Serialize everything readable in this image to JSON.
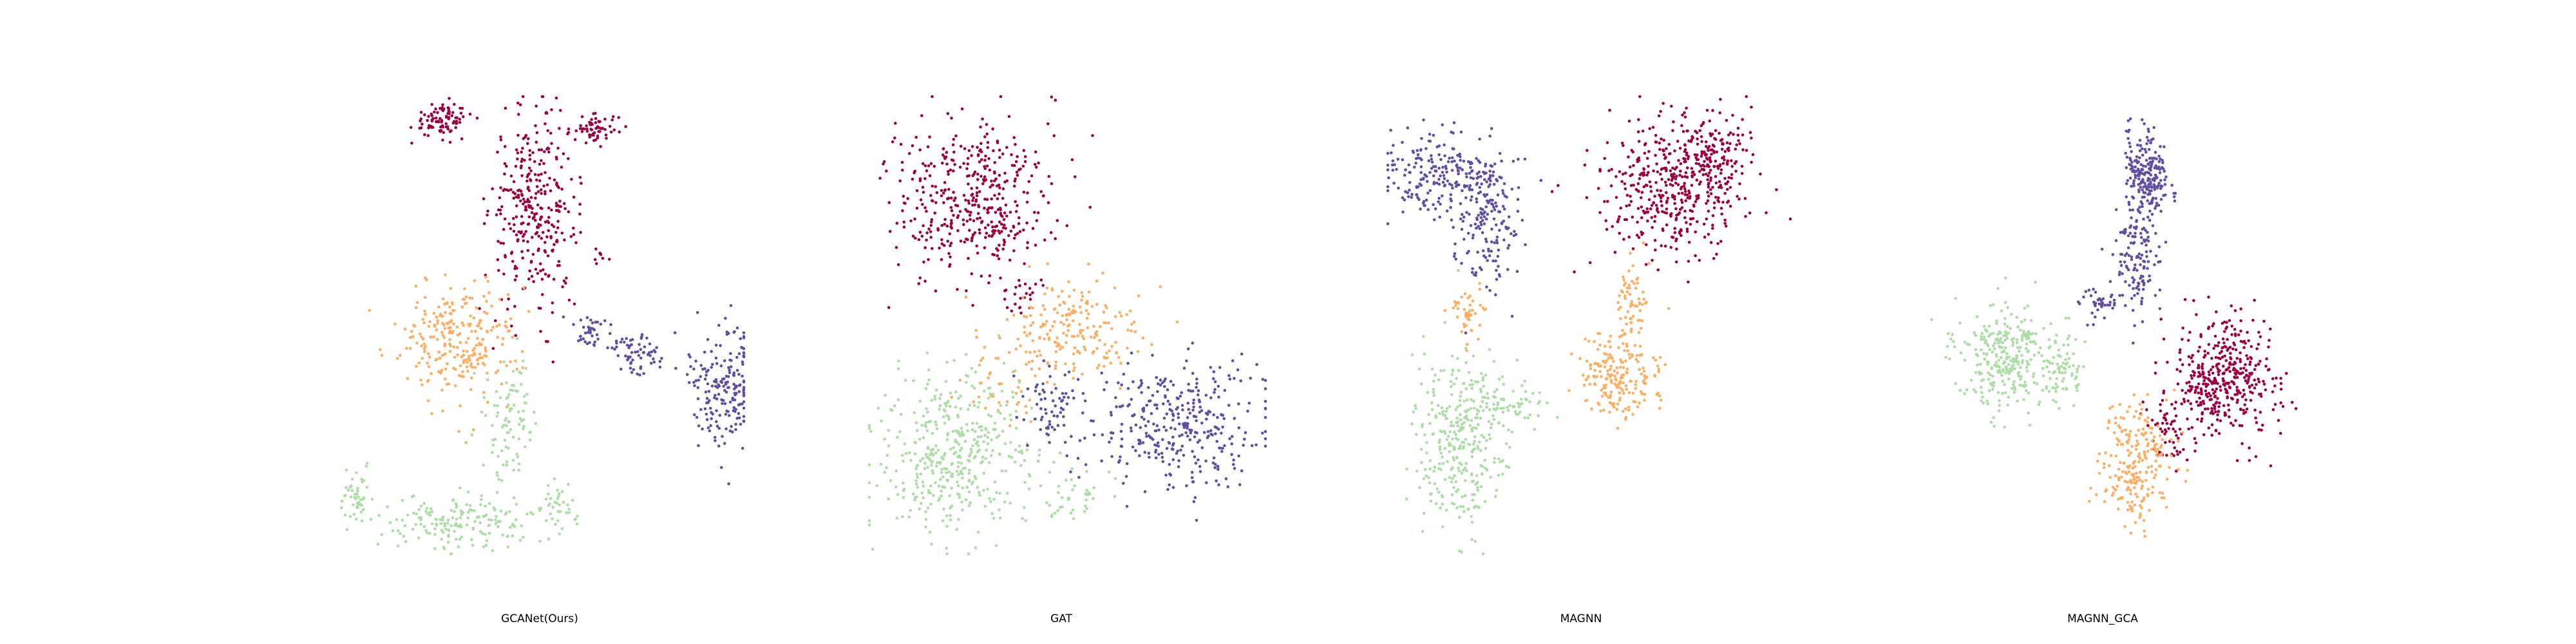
{
  "figure": {
    "panels": [
      "GCANet(Ours)",
      "GAT",
      "MAGNN",
      "MAGNN_GCA"
    ]
  },
  "chart_data": [
    {
      "type": "scatter",
      "title": "GCANet(Ours)",
      "xlabel": "",
      "ylabel": "",
      "axes_visible": false,
      "grid": false,
      "legend": "none",
      "xlim": [
        0,
        100
      ],
      "ylim": [
        0,
        100
      ],
      "series": [
        {
          "color": "#9e0142",
          "clusters": [
            {
              "center": [
                25,
                95
              ],
              "spread": [
                5,
                2.5
              ],
              "n": 90
            },
            {
              "center": [
                48,
                75
              ],
              "spread": [
                7,
                14
              ],
              "n": 320
            },
            {
              "center": [
                63,
                93
              ],
              "spread": [
                4,
                2
              ],
              "n": 60
            },
            {
              "center": [
                65,
                65
              ],
              "spread": [
                1.2,
                1.2
              ],
              "n": 8
            }
          ]
        },
        {
          "color": "#fdae61",
          "clusters": [
            {
              "center": [
                29,
                47
              ],
              "spread": [
                10,
                9
              ],
              "n": 260
            }
          ]
        },
        {
          "color": "#abdda4",
          "clusters": [
            {
              "center": [
                42,
                29
              ],
              "spread": [
                4,
                9
              ],
              "n": 90
            },
            {
              "center": [
                30,
                7
              ],
              "spread": [
                12,
                4
              ],
              "n": 170
            },
            {
              "center": [
                4,
                12
              ],
              "spread": [
                3,
                4
              ],
              "n": 45
            },
            {
              "center": [
                54,
                10
              ],
              "spread": [
                3,
                4
              ],
              "n": 40
            }
          ]
        },
        {
          "color": "#5e4fa2",
          "clusters": [
            {
              "center": [
                62,
                48
              ],
              "spread": [
                4,
                3
              ],
              "n": 40
            },
            {
              "center": [
                74,
                44
              ],
              "spread": [
                5,
                3
              ],
              "n": 60
            },
            {
              "center": [
                95,
                37
              ],
              "spread": [
                6,
                9
              ],
              "n": 190
            }
          ]
        }
      ]
    },
    {
      "type": "scatter",
      "title": "GAT",
      "xlabel": "",
      "ylabel": "",
      "axes_visible": false,
      "grid": false,
      "legend": "none",
      "xlim": [
        0,
        100
      ],
      "ylim": [
        0,
        100
      ],
      "series": [
        {
          "color": "#9e0142",
          "clusters": [
            {
              "center": [
                26,
                77
              ],
              "spread": [
                13,
                12
              ],
              "n": 420
            },
            {
              "center": [
                39,
                57
              ],
              "spread": [
                4,
                3
              ],
              "n": 25
            }
          ]
        },
        {
          "color": "#fdae61",
          "clusters": [
            {
              "center": [
                52,
                50
              ],
              "spread": [
                12,
                7
              ],
              "n": 190
            },
            {
              "center": [
                38,
                37
              ],
              "spread": [
                10,
                6
              ],
              "n": 50
            }
          ]
        },
        {
          "color": "#abdda4",
          "clusters": [
            {
              "center": [
                22,
                22
              ],
              "spread": [
                13,
                12
              ],
              "n": 420
            },
            {
              "center": [
                52,
                13
              ],
              "spread": [
                6,
                4
              ],
              "n": 40
            }
          ]
        },
        {
          "color": "#5e4fa2",
          "clusters": [
            {
              "center": [
                78,
                28
              ],
              "spread": [
                13,
                9
              ],
              "n": 340
            },
            {
              "center": [
                47,
                32
              ],
              "spread": [
                6,
                6
              ],
              "n": 70
            }
          ]
        }
      ]
    },
    {
      "type": "scatter",
      "title": "MAGNN",
      "xlabel": "",
      "ylabel": "",
      "axes_visible": false,
      "grid": false,
      "legend": "none",
      "xlim": [
        0,
        100
      ],
      "ylim": [
        0,
        100
      ],
      "series": [
        {
          "color": "#9e0142",
          "clusters": [
            {
              "center": [
                70,
                80
              ],
              "spread": [
                12,
                10
              ],
              "n": 420
            },
            {
              "center": [
                82,
                87
              ],
              "spread": [
                6,
                6
              ],
              "n": 110
            }
          ]
        },
        {
          "color": "#fdae61",
          "clusters": [
            {
              "center": [
                57,
                39
              ],
              "spread": [
                7,
                6
              ],
              "n": 200
            },
            {
              "center": [
                61,
                55
              ],
              "spread": [
                3,
                6
              ],
              "n": 60
            },
            {
              "center": [
                20,
                52
              ],
              "spread": [
                3,
                4
              ],
              "n": 45
            }
          ]
        },
        {
          "color": "#abdda4",
          "clusters": [
            {
              "center": [
                18,
                24
              ],
              "spread": [
                8,
                13
              ],
              "n": 320
            },
            {
              "center": [
                30,
                32
              ],
              "spread": [
                7,
                3
              ],
              "n": 60
            }
          ]
        },
        {
          "color": "#5e4fa2",
          "clusters": [
            {
              "center": [
                13,
                83
              ],
              "spread": [
                9,
                6
              ],
              "n": 200
            },
            {
              "center": [
                25,
                72
              ],
              "spread": [
                6,
                10
              ],
              "n": 170
            }
          ]
        }
      ]
    },
    {
      "type": "scatter",
      "title": "MAGNN_GCA",
      "xlabel": "",
      "ylabel": "",
      "axes_visible": false,
      "grid": false,
      "legend": "none",
      "xlim": [
        0,
        100
      ],
      "ylim": [
        0,
        100
      ],
      "series": [
        {
          "color": "#9e0142",
          "clusters": [
            {
              "center": [
                79,
                38
              ],
              "spread": [
                9,
                8
              ],
              "n": 420
            },
            {
              "center": [
                65,
                26
              ],
              "spread": [
                4,
                5
              ],
              "n": 50
            }
          ]
        },
        {
          "color": "#fdae61",
          "clusters": [
            {
              "center": [
                56,
                19
              ],
              "spread": [
                6,
                9
              ],
              "n": 230
            }
          ]
        },
        {
          "color": "#abdda4",
          "clusters": [
            {
              "center": [
                25,
                43
              ],
              "spread": [
                9,
                8
              ],
              "n": 320
            },
            {
              "center": [
                39,
                40
              ],
              "spread": [
                3,
                5
              ],
              "n": 50
            }
          ]
        },
        {
          "color": "#5e4fa2",
          "clusters": [
            {
              "center": [
                59,
                83
              ],
              "spread": [
                4,
                7
              ],
              "n": 210
            },
            {
              "center": [
                57,
                65
              ],
              "spread": [
                4,
                8
              ],
              "n": 130
            },
            {
              "center": [
                47,
                55
              ],
              "spread": [
                4,
                3
              ],
              "n": 40
            }
          ]
        }
      ]
    }
  ]
}
